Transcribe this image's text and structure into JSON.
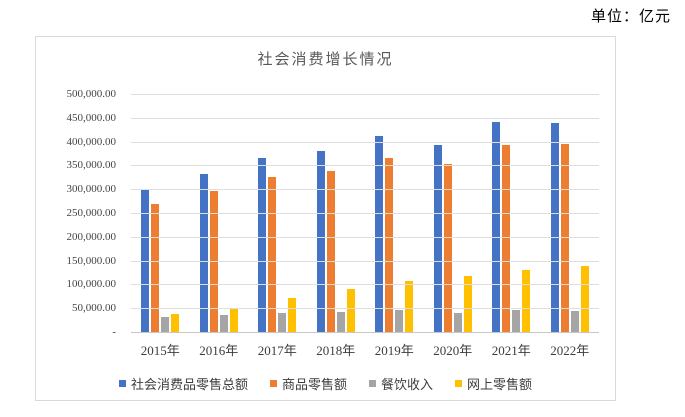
{
  "page": {
    "unit_label": "单位：亿元"
  },
  "chart_data": {
    "type": "bar",
    "title": "社会消费增长情况",
    "categories": [
      "2015年",
      "2016年",
      "2017年",
      "2018年",
      "2019年",
      "2020年",
      "2021年",
      "2022年"
    ],
    "series": [
      {
        "name": "社会消费品零售总额",
        "color": "#4472C4",
        "values": [
          300931,
          332316,
          366262,
          380987,
          411649,
          391981,
          440823,
          439733
        ]
      },
      {
        "name": "商品零售额",
        "color": "#ED7D31",
        "values": [
          268621,
          296518,
          326618,
          338271,
          364928,
          352453,
          393928,
          395792
        ]
      },
      {
        "name": "餐饮收入",
        "color": "#A5A5A5",
        "values": [
          32310,
          35799,
          39644,
          42716,
          46721,
          39527,
          46895,
          43941
        ]
      },
      {
        "name": "网上零售额",
        "color": "#FFC000",
        "values": [
          38773,
          51556,
          71751,
          90065,
          106324,
          117601,
          130884,
          137853
        ]
      }
    ],
    "ylim": [
      0,
      500000
    ],
    "y_tick_labels": [
      "500,000.00",
      "450,000.00",
      "400,000.00",
      "350,000.00",
      "300,000.00",
      "250,000.00",
      "200,000.00",
      "150,000.00",
      "100,000.00",
      "50,000.00",
      "-"
    ],
    "grid": true,
    "legend_position": "bottom",
    "gridline_color": "#dedede",
    "axis_line_color": "#c6c6c6"
  }
}
